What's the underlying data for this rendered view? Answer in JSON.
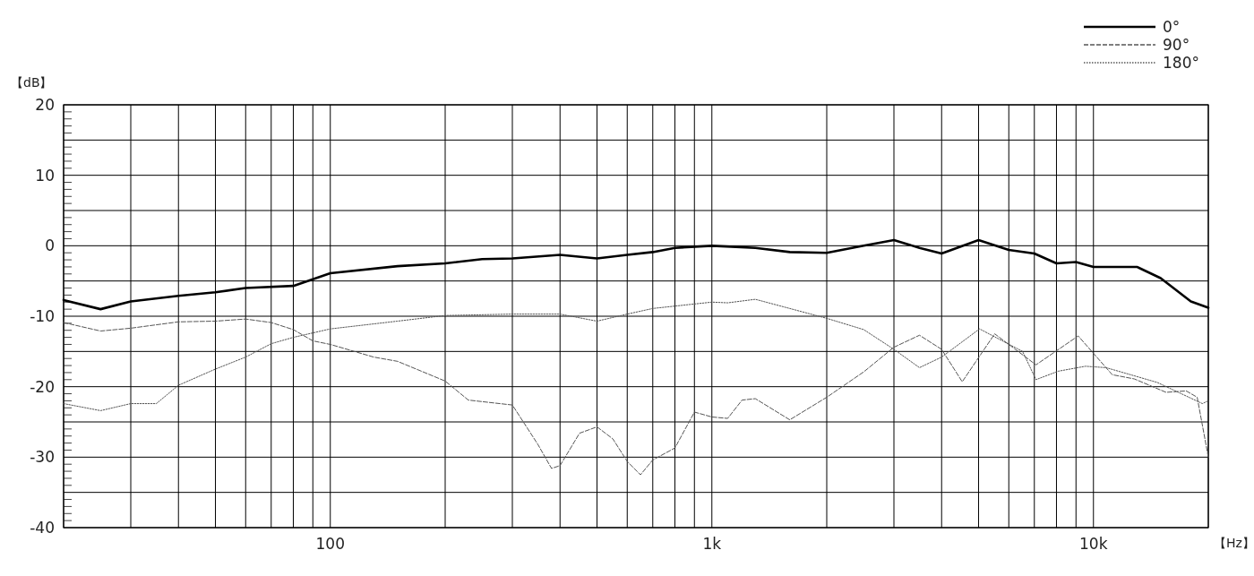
{
  "chart_data": {
    "type": "line",
    "xlabel": "【Hz】",
    "ylabel": "【dB】",
    "log": "x",
    "grid": true,
    "legend": "top right",
    "marker": "none",
    "xlim": [
      20,
      20000
    ],
    "ylim": [
      -40,
      20
    ],
    "xticks": [
      {
        "value": 20,
        "label": null
      },
      {
        "value": 30,
        "label": null
      },
      {
        "value": 40,
        "label": null
      },
      {
        "value": 50,
        "label": null
      },
      {
        "value": 60,
        "label": null
      },
      {
        "value": 70,
        "label": null
      },
      {
        "value": 80,
        "label": null
      },
      {
        "value": 90,
        "label": null
      },
      100,
      {
        "value": 200,
        "label": null
      },
      {
        "value": 300,
        "label": null
      },
      {
        "value": 400,
        "label": null
      },
      {
        "value": 500,
        "label": null
      },
      {
        "value": 600,
        "label": null
      },
      {
        "value": 700,
        "label": null
      },
      {
        "value": 800,
        "label": null
      },
      {
        "value": 900,
        "label": null
      },
      {
        "value": 1000,
        "label": "1k"
      },
      {
        "value": 2000,
        "label": null
      },
      {
        "value": 3000,
        "label": null
      },
      {
        "value": 4000,
        "label": null
      },
      {
        "value": 5000,
        "label": null
      },
      {
        "value": 6000,
        "label": null
      },
      {
        "value": 7000,
        "label": null
      },
      {
        "value": 8000,
        "label": null
      },
      {
        "value": 9000,
        "label": null
      },
      {
        "value": 10000,
        "label": "10k"
      },
      {
        "value": 20000,
        "label": null
      }
    ],
    "yticks": [
      -40,
      {
        "value": -35,
        "label": null
      },
      -30,
      {
        "value": -25,
        "label": null
      },
      -20,
      {
        "value": -15,
        "label": null
      },
      -10,
      {
        "value": -5,
        "label": null
      },
      0,
      {
        "value": 5,
        "label": null
      },
      10,
      {
        "value": 15,
        "label": null
      },
      20
    ],
    "series": [
      {
        "name": "0°",
        "color": "#000000",
        "line_style": "solid",
        "x": [
          20,
          25,
          30,
          40,
          50,
          60,
          80,
          100,
          150,
          200,
          250,
          300,
          400,
          500,
          600,
          700,
          800,
          1000,
          1300,
          1600,
          2000,
          2500,
          3000,
          3500,
          4000,
          5000,
          6000,
          7000,
          8000,
          9000,
          10000,
          13000,
          15000,
          18000,
          20000
        ],
        "values": [
          -7.7,
          -9.0,
          -7.9,
          -7.1,
          -6.6,
          -6.0,
          -5.7,
          -3.9,
          -2.9,
          -2.5,
          -1.9,
          -1.8,
          -1.3,
          -1.8,
          -1.3,
          -0.9,
          -0.3,
          0,
          -0.3,
          -0.9,
          -1.0,
          0,
          0.8,
          -0.3,
          -1.1,
          0.8,
          -0.6,
          -1.1,
          -2.5,
          -2.3,
          -3.0,
          -3.0,
          -4.6,
          -7.9,
          -8.8
        ]
      },
      {
        "name": "90°",
        "color": "#555555",
        "line_style": "dashed",
        "x": [
          20,
          25,
          30,
          40,
          50,
          60,
          70,
          80,
          90,
          100,
          130,
          150,
          200,
          230,
          300,
          350,
          380,
          400,
          450,
          500,
          550,
          600,
          650,
          700,
          800,
          900,
          1000,
          1100,
          1200,
          1300,
          1600,
          2000,
          2500,
          3000,
          3500,
          4000,
          4530,
          5510,
          7070,
          9120,
          11200,
          12800,
          15500,
          17500,
          18700,
          20000
        ],
        "values": [
          -10.9,
          -12.1,
          -11.7,
          -10.8,
          -10.7,
          -10.4,
          -10.9,
          -11.9,
          -13.5,
          -14.0,
          -15.8,
          -16.4,
          -19.2,
          -21.9,
          -22.6,
          -28.2,
          -31.6,
          -31.2,
          -26.6,
          -25.7,
          -27.4,
          -30.6,
          -32.5,
          -30.4,
          -28.7,
          -23.6,
          -24.3,
          -24.5,
          -21.9,
          -21.7,
          -24.7,
          -21.5,
          -17.9,
          -14.4,
          -12.7,
          -14.7,
          -19.3,
          -12.5,
          -16.9,
          -12.8,
          -18.3,
          -18.9,
          -20.8,
          -20.6,
          -21.5,
          -30.0
        ]
      },
      {
        "name": "180°",
        "color": "#555555",
        "line_style": "dotted",
        "x": [
          20,
          25,
          30,
          35,
          40,
          50,
          60,
          70,
          80,
          100,
          150,
          200,
          300,
          400,
          500,
          600,
          700,
          1000,
          1100,
          1300,
          2000,
          2500,
          3000,
          3500,
          4000,
          5030,
          6520,
          7070,
          8090,
          9530,
          10800,
          14700,
          19300,
          20000
        ],
        "values": [
          -22.4,
          -23.4,
          -22.4,
          -22.4,
          -19.8,
          -17.5,
          -15.8,
          -13.9,
          -13.0,
          -11.8,
          -10.7,
          -9.9,
          -9.7,
          -9.7,
          -10.7,
          -9.7,
          -8.9,
          -8.0,
          -8.1,
          -7.6,
          -10.3,
          -11.9,
          -14.7,
          -17.3,
          -15.8,
          -11.8,
          -15.0,
          -19.0,
          -17.8,
          -17.1,
          -17.3,
          -19.4,
          -22.4,
          -22.0
        ]
      }
    ]
  }
}
